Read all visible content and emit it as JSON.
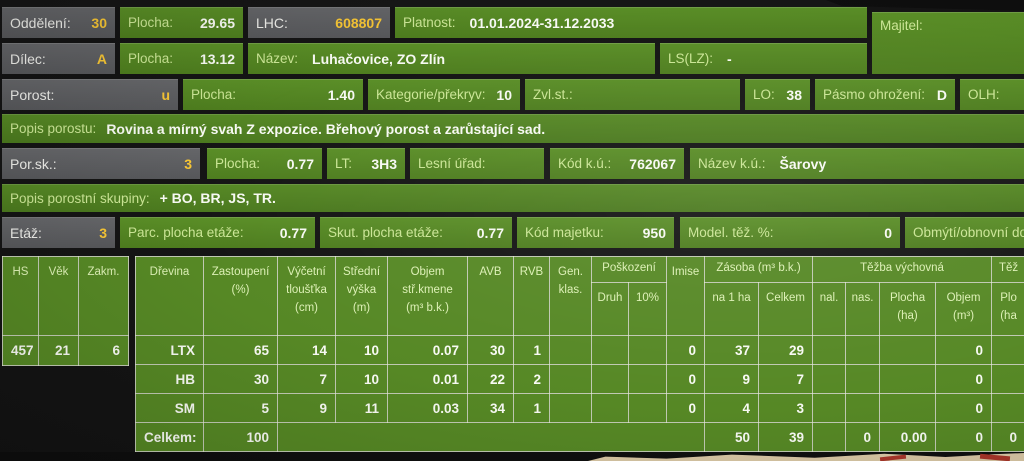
{
  "fields": {
    "oddeleni": {
      "label": "Oddělení:",
      "value": "30"
    },
    "plocha1": {
      "label": "Plocha:",
      "value": "29.65"
    },
    "lhc": {
      "label": "LHC:",
      "value": "608807"
    },
    "platnost": {
      "label": "Platnost:",
      "value": "01.01.2024-31.12.2033"
    },
    "majitel": {
      "label": "Majitel:"
    },
    "dilec": {
      "label": "Dílec:",
      "value": "A"
    },
    "plocha2": {
      "label": "Plocha:",
      "value": "13.12"
    },
    "nazev": {
      "label": "Název:",
      "value": "Luhačovice, ZO Zlín"
    },
    "lslz": {
      "label": "LS(LZ):",
      "value": "-"
    },
    "porost": {
      "label": "Porost:",
      "value": "u"
    },
    "plocha3": {
      "label": "Plocha:",
      "value": "1.40"
    },
    "kategorie": {
      "label": "Kategorie/překryv:",
      "value": "10"
    },
    "zvlst": {
      "label": "Zvl.st.:"
    },
    "lo": {
      "label": "LO:",
      "value": "38"
    },
    "pasmo": {
      "label": "Pásmo ohrožení:",
      "value": "D"
    },
    "olh": {
      "label": "OLH:"
    },
    "popis_porostu": {
      "label": "Popis porostu:",
      "value": "Rovina a mírný svah Z expozice. Břehový porost a zarůstající sad."
    },
    "porsk": {
      "label": "Por.sk.:",
      "value": "3"
    },
    "plocha4": {
      "label": "Plocha:",
      "value": "0.77"
    },
    "lt": {
      "label": "LT:",
      "value": "3H3"
    },
    "lesni_urad": {
      "label": "Lesní úřad:"
    },
    "kod_ku": {
      "label": "Kód k.ú.:",
      "value": "762067"
    },
    "nazev_ku": {
      "label": "Název k.ú.:",
      "value": "Šarovy"
    },
    "popis_skupiny": {
      "label": "Popis porostní skupiny:",
      "value": "+ BO, BR, JS, TR."
    },
    "etaz": {
      "label": "Etáž:",
      "value": "3"
    },
    "parc": {
      "label": "Parc. plocha etáže:",
      "value": "0.77"
    },
    "skut": {
      "label": "Skut. plocha etáže:",
      "value": "0.77"
    },
    "kod_majetku": {
      "label": "Kód majetku:",
      "value": "950"
    },
    "model_tez": {
      "label": "Model. těž. %:",
      "value": "0"
    },
    "obmyti": {
      "label": "Obmýtí/obnovní doba"
    }
  },
  "mini_table": {
    "headers": [
      "HS",
      "Věk",
      "Zakm."
    ],
    "row": [
      "457",
      "21",
      "6"
    ]
  },
  "main_table": {
    "headers": {
      "drevina": "Dřevina",
      "zastoupeni": "Zastoupení\n(%)",
      "vycetni": "Výčetní\ntloušťka\n(cm)",
      "stredni": "Střední\nvýška\n(m)",
      "objem_kmene": "Objem\nstř.kmene\n(m³ b.k.)",
      "avb": "AVB",
      "rvb": "RVB",
      "gen": "Gen.\nklas.",
      "poskozeni": "Poškození",
      "druh": "Druh",
      "deset_proc": "10%",
      "imise": "Imise",
      "zasoba": "Zásoba (m³ b.k.)",
      "na1ha": "na 1 ha",
      "celkem": "Celkem",
      "tezba_vychovna": "Těžba výchovná",
      "nal": "nal.",
      "nas": "nas.",
      "plocha_ha": "Plocha\n(ha)",
      "objem_m3": "Objem\n(m³)",
      "tez_cut": "Těž",
      "plo_cut": "Plo\n(ha"
    },
    "rows": [
      {
        "cells": [
          "LTX",
          "65",
          "14",
          "10",
          "0.07",
          "30",
          "1",
          "",
          "",
          "",
          "0",
          "37",
          "29",
          "",
          "",
          "",
          "0",
          ""
        ]
      },
      {
        "cells": [
          "HB",
          "30",
          "7",
          "10",
          "0.01",
          "22",
          "2",
          "",
          "",
          "",
          "0",
          "9",
          "7",
          "",
          "",
          "",
          "0",
          ""
        ]
      },
      {
        "cells": [
          "SM",
          "5",
          "9",
          "11",
          "0.03",
          "34",
          "1",
          "",
          "",
          "",
          "0",
          "4",
          "3",
          "",
          "",
          "",
          "0",
          ""
        ]
      },
      {
        "cells": [
          {
            "t": "Celkem:",
            "a": "l"
          },
          "100",
          {
            "t": "",
            "s": 9
          },
          "50",
          "39",
          "",
          "0",
          "0.00",
          "0",
          "0"
        ]
      }
    ]
  }
}
